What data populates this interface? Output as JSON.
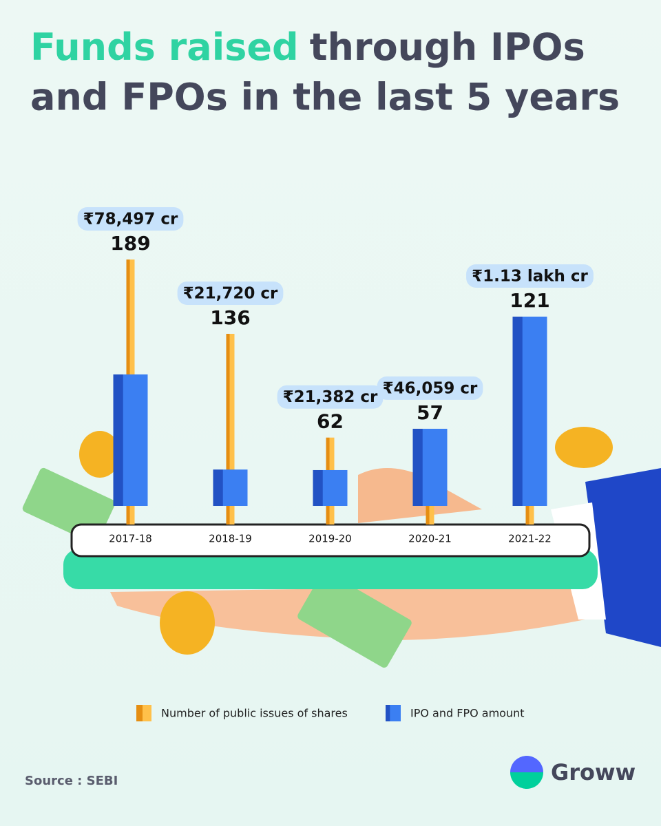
{
  "chart_data": {
    "type": "bar",
    "title": {
      "highlight": "Funds raised",
      "line1": "through IPOs",
      "line2": "and FPOs in the last 5 years"
    },
    "categories": [
      "2017-18",
      "2018-19",
      "2019-20",
      "2020-21",
      "2021-22"
    ],
    "series": [
      {
        "name": "Number of public issues of shares",
        "color": "#f5a623",
        "values": [
          189,
          136,
          62,
          57,
          121
        ]
      },
      {
        "name": "IPO and FPO amount",
        "color": "#3478f0",
        "values": [
          78497,
          21720,
          21382,
          46059,
          113000
        ],
        "value_labels": [
          "₹78,497 cr",
          "₹21,720 cr",
          "₹21,382 cr",
          "₹46,059 cr",
          "₹1.13 lakh cr"
        ]
      }
    ],
    "source": "Source : SEBI",
    "brand": "Groww"
  }
}
